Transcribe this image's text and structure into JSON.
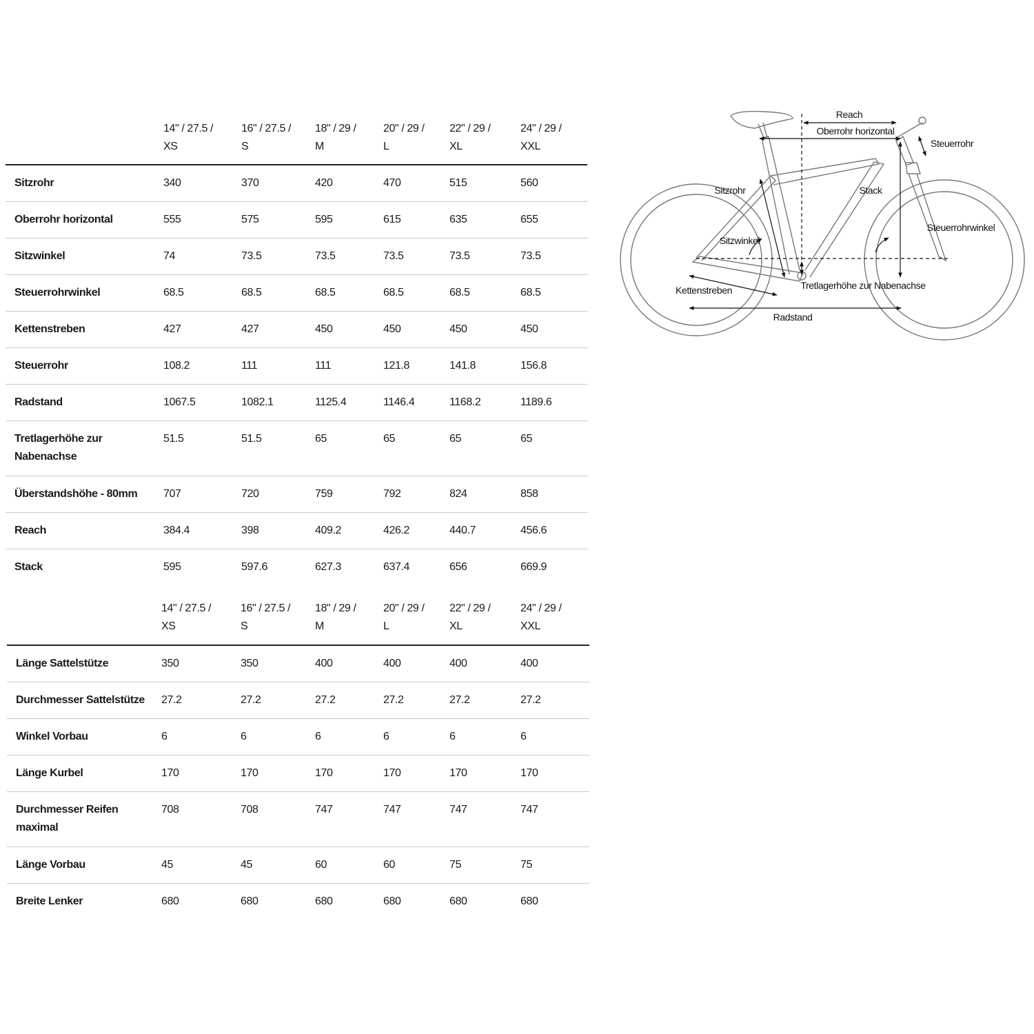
{
  "tables": [
    {
      "sizes": [
        [
          "14\" / 27.5 /",
          "XS"
        ],
        [
          "16\" / 27.5 /",
          "S"
        ],
        [
          "18\" / 29 /",
          "M"
        ],
        [
          "20\" / 29 /",
          "L"
        ],
        [
          "22\" / 29 /",
          "XL"
        ],
        [
          "24\" / 29 /",
          "XXL"
        ]
      ],
      "rows": [
        {
          "label": [
            "Sitzrohr"
          ],
          "values": [
            "340",
            "370",
            "420",
            "470",
            "515",
            "560"
          ]
        },
        {
          "label": [
            "Oberrohr horizontal"
          ],
          "values": [
            "555",
            "575",
            "595",
            "615",
            "635",
            "655"
          ]
        },
        {
          "label": [
            "Sitzwinkel"
          ],
          "values": [
            "74",
            "73.5",
            "73.5",
            "73.5",
            "73.5",
            "73.5"
          ]
        },
        {
          "label": [
            "Steuerrohrwinkel"
          ],
          "values": [
            "68.5",
            "68.5",
            "68.5",
            "68.5",
            "68.5",
            "68.5"
          ]
        },
        {
          "label": [
            "Kettenstreben"
          ],
          "values": [
            "427",
            "427",
            "450",
            "450",
            "450",
            "450"
          ]
        },
        {
          "label": [
            "Steuerrohr"
          ],
          "values": [
            "108.2",
            "111",
            "111",
            "121.8",
            "141.8",
            "156.8"
          ]
        },
        {
          "label": [
            "Radstand"
          ],
          "values": [
            "1067.5",
            "1082.1",
            "1125.4",
            "1146.4",
            "1168.2",
            "1189.6"
          ]
        },
        {
          "label": [
            "Tretlagerhöhe zur",
            "Nabenachse"
          ],
          "values": [
            "51.5",
            "51.5",
            "65",
            "65",
            "65",
            "65"
          ]
        },
        {
          "label": [
            "Überstandshöhe - 80mm"
          ],
          "values": [
            "707",
            "720",
            "759",
            "792",
            "824",
            "858"
          ]
        },
        {
          "label": [
            "Reach"
          ],
          "values": [
            "384.4",
            "398",
            "409.2",
            "426.2",
            "440.7",
            "456.6"
          ]
        },
        {
          "label": [
            "Stack"
          ],
          "values": [
            "595",
            "597.6",
            "627.3",
            "637.4",
            "656",
            "669.9"
          ]
        }
      ]
    },
    {
      "sizes": [
        [
          "14\" / 27.5 /",
          "XS"
        ],
        [
          "16\" / 27.5 /",
          "S"
        ],
        [
          "18\" / 29 /",
          "M"
        ],
        [
          "20\" / 29 /",
          "L"
        ],
        [
          "22\" / 29 /",
          "XL"
        ],
        [
          "24\" / 29 /",
          "XXL"
        ]
      ],
      "rows": [
        {
          "label": [
            "Länge Sattelstütze"
          ],
          "values": [
            "350",
            "350",
            "400",
            "400",
            "400",
            "400"
          ]
        },
        {
          "label": [
            "Durchmesser Sattelstütze"
          ],
          "values": [
            "27.2",
            "27.2",
            "27.2",
            "27.2",
            "27.2",
            "27.2"
          ]
        },
        {
          "label": [
            "Winkel Vorbau"
          ],
          "values": [
            "6",
            "6",
            "6",
            "6",
            "6",
            "6"
          ]
        },
        {
          "label": [
            "Länge Kurbel"
          ],
          "values": [
            "170",
            "170",
            "170",
            "170",
            "170",
            "170"
          ]
        },
        {
          "label": [
            "Durchmesser Reifen",
            "maximal"
          ],
          "values": [
            "708",
            "708",
            "747",
            "747",
            "747",
            "747"
          ]
        },
        {
          "label": [
            "Länge Vorbau"
          ],
          "values": [
            "45",
            "45",
            "60",
            "60",
            "75",
            "75"
          ]
        },
        {
          "label": [
            "Breite Lenker"
          ],
          "values": [
            "680",
            "680",
            "680",
            "680",
            "680",
            "680"
          ]
        }
      ]
    }
  ],
  "diagram": {
    "labels": {
      "reach": "Reach",
      "top_tube": "Oberrohr horizontal",
      "head_tube": "Steuerrohr",
      "seat_tube": "Sitzrohr",
      "stack": "Stack",
      "head_angle": "Steuerrohrwinkel",
      "seat_angle": "Sitzwinkel",
      "bb_drop": "Tretlagerhöhe zur Nabenachse",
      "chainstay": "Kettenstreben",
      "wheelbase": "Radstand"
    }
  }
}
